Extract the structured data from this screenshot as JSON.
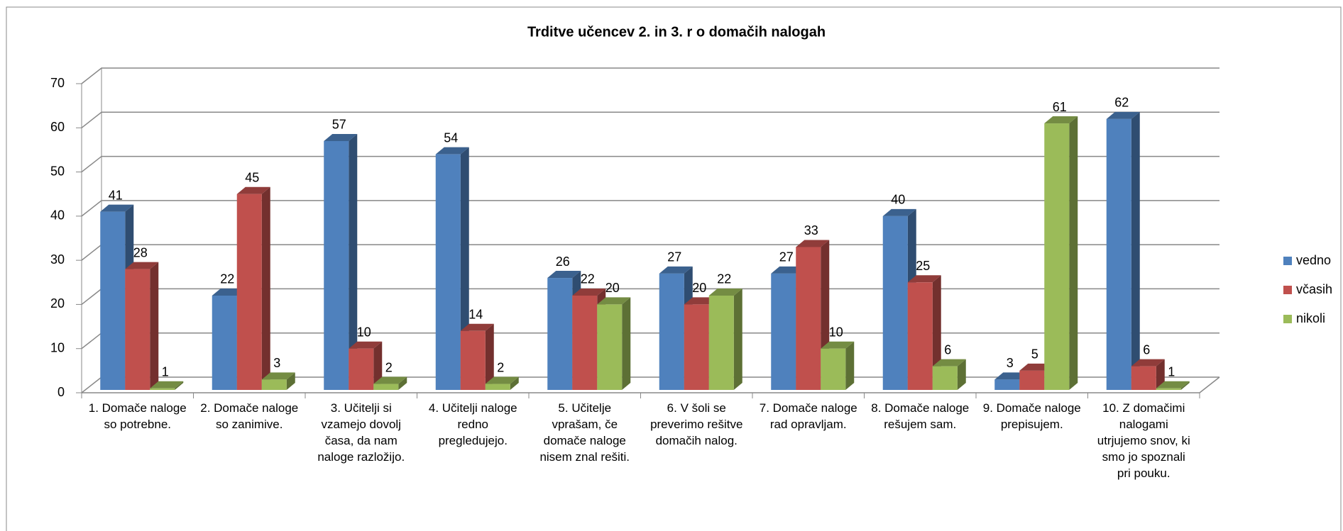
{
  "chart_data": {
    "type": "bar3d",
    "title": "Trditve učencev 2. in 3. r o domačih nalogah",
    "categories": [
      "1. Domače naloge so potrebne.",
      "2. Domače naloge so zanimive.",
      "3. Učitelji si vzamejo dovolj časa, da nam naloge razložijo.",
      "4. Učitelji naloge redno pregledujejo.",
      "5. Učitelje vprašam, če domače naloge nisem znal rešiti.",
      "6. V šoli se preverimo rešitve domačih nalog.",
      "7. Domače naloge rad opravljam.",
      "8. Domače naloge rešujem sam.",
      "9. Domače naloge prepisujem.",
      "10. Z domačimi nalogami utrjujemo snov, ki smo jo spoznali pri pouku."
    ],
    "series": [
      {
        "name": "vedno",
        "color": "#4f81bd",
        "values": [
          41,
          22,
          57,
          54,
          26,
          27,
          27,
          40,
          3,
          62
        ]
      },
      {
        "name": "včasih",
        "color": "#c0504d",
        "values": [
          28,
          45,
          10,
          14,
          22,
          20,
          33,
          25,
          5,
          6
        ]
      },
      {
        "name": "nikoli",
        "color": "#9bbb59",
        "values": [
          1,
          3,
          2,
          2,
          20,
          22,
          10,
          6,
          61,
          1
        ]
      }
    ],
    "ylim": [
      0,
      70
    ],
    "yticks": [
      0,
      10,
      20,
      30,
      40,
      50,
      60,
      70
    ],
    "grid": true,
    "legend": "right"
  }
}
